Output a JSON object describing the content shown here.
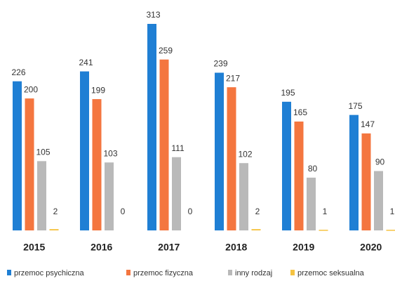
{
  "chart_data": {
    "type": "bar",
    "categories": [
      "2015",
      "2016",
      "2017",
      "2018",
      "2019",
      "2020"
    ],
    "series": [
      {
        "name": "przemoc psychiczna",
        "color": "#1f7fd4",
        "values": [
          226,
          241,
          313,
          239,
          195,
          175
        ]
      },
      {
        "name": "przemoc fizyczna",
        "color": "#f4763f",
        "values": [
          200,
          199,
          259,
          217,
          165,
          147
        ]
      },
      {
        "name": "inny rodzaj",
        "color": "#b9b9b9",
        "values": [
          105,
          103,
          111,
          102,
          80,
          90
        ]
      },
      {
        "name": "przemoc seksualna",
        "color": "#f5c342",
        "values": [
          2,
          0,
          0,
          2,
          1,
          1
        ]
      }
    ]
  }
}
